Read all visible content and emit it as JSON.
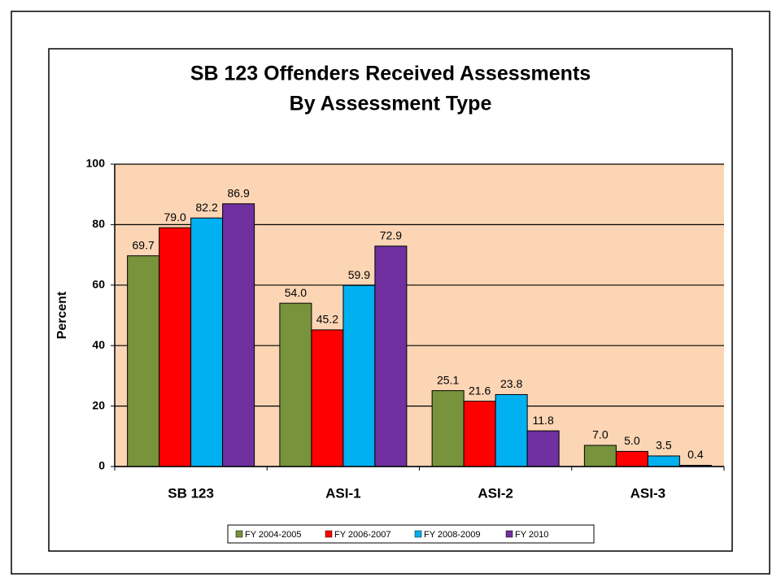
{
  "chart_data": {
    "type": "bar",
    "title": [
      "SB 123 Offenders Received Assessments",
      "By Assessment Type"
    ],
    "y_label": "Percent",
    "categories": [
      "SB 123",
      "ASI-1",
      "ASI-2",
      "ASI-3"
    ],
    "series": [
      {
        "name": "FY 2004-2005",
        "color": "#77933c",
        "values": [
          69.7,
          54,
          25.1,
          7
        ],
        "value_labels": [
          "69.7",
          "54.0",
          "25.1",
          "7.0"
        ]
      },
      {
        "name": "FY 2006-2007",
        "color": "#ff0000",
        "values": [
          79,
          45.2,
          21.6,
          5
        ],
        "value_labels": [
          "79.0",
          "45.2",
          "21.6",
          "5.0"
        ]
      },
      {
        "name": "FY 2008-2009",
        "color": "#00b0f0",
        "values": [
          82.2,
          59.9,
          23.8,
          3.5
        ],
        "value_labels": [
          "82.2",
          "59.9",
          "23.8",
          "3.5"
        ]
      },
      {
        "name": "FY 2010",
        "color": "#7030a0",
        "values": [
          86.9,
          72.9,
          11.8,
          0.4
        ],
        "value_labels": [
          "86.9",
          "72.9",
          "11.8",
          "0.4"
        ]
      }
    ],
    "ylim": [
      0,
      100
    ],
    "yticks": [
      0,
      20,
      40,
      60,
      80,
      100
    ],
    "grid": true,
    "plot_background": "#fcd5b4",
    "legend": "bottom"
  }
}
